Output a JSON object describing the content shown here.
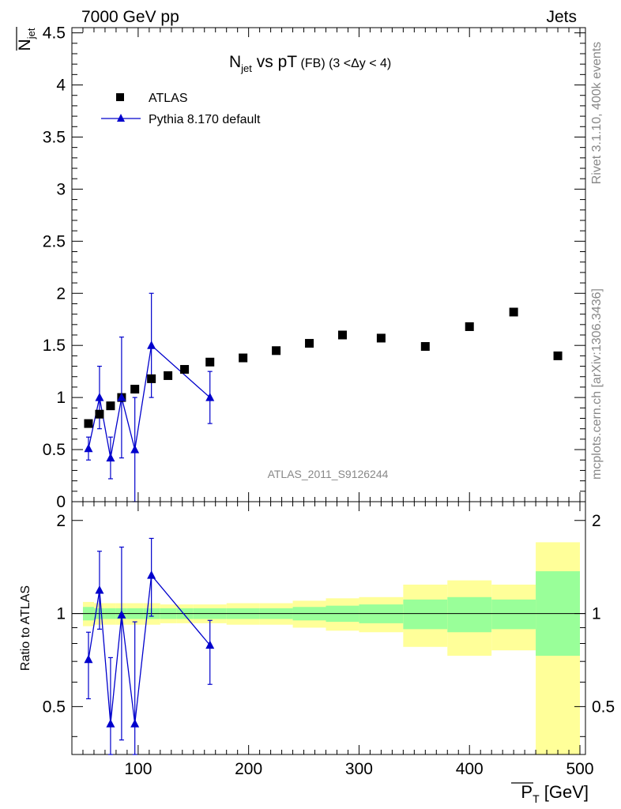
{
  "header": {
    "left": "7000 GeV pp",
    "right": "Jets"
  },
  "side_labels": {
    "rivet": "Rivet 3.1.10,  400k events",
    "mcplots": "mcplots.cern.ch [arXiv:1306.3436]"
  },
  "chart_data": [
    {
      "type": "scatter",
      "title_main": "N",
      "title_sub": "jet",
      "title_rest": " vs pT",
      "title_small": " (FB) (3 <Δy < 4)",
      "ylabel": "N",
      "ylabel_sub": "jet",
      "watermark": "ATLAS_2011_S9126244",
      "xlim": [
        40,
        505
      ],
      "ylim": [
        0,
        4.55
      ],
      "yticks": [
        0,
        0.5,
        1,
        1.5,
        2,
        2.5,
        3,
        3.5,
        4,
        4.5
      ],
      "ytick_labels": [
        "0",
        "0.5",
        "1",
        "1.5",
        "2",
        "2.5",
        "3",
        "3.5",
        "4",
        "4.5"
      ],
      "legend_position": "top-left",
      "series": [
        {
          "name": "ATLAS",
          "marker": "square",
          "color": "#000000",
          "x": [
            55,
            65,
            75,
            85,
            97,
            112,
            127,
            142,
            165,
            195,
            225,
            255,
            285,
            320,
            360,
            400,
            440,
            480
          ],
          "y": [
            0.75,
            0.84,
            0.92,
            1.0,
            1.08,
            1.18,
            1.21,
            1.27,
            1.34,
            1.38,
            1.45,
            1.52,
            1.6,
            1.57,
            1.49,
            1.68,
            1.82,
            1.4
          ]
        },
        {
          "name": "Pythia 8.170 default",
          "marker": "triangle",
          "color": "#0000cc",
          "x": [
            55,
            65,
            75,
            85,
            97,
            112,
            165
          ],
          "y": [
            0.51,
            1.0,
            0.42,
            1.0,
            0.5,
            1.5,
            1.0
          ],
          "err": [
            0.11,
            0.3,
            0.2,
            0.58,
            0.5,
            0.5,
            0.25
          ]
        }
      ]
    },
    {
      "type": "line",
      "ylabel": "Ratio to ATLAS",
      "xlabel": "P",
      "xlabel_sub": "T",
      "xlabel_unit": " [GeV]",
      "xlim": [
        40,
        505
      ],
      "ylim": [
        0.35,
        2.3
      ],
      "yticks": [
        0.5,
        1,
        2
      ],
      "ytick_labels": [
        "0.5",
        "1",
        "2"
      ],
      "xticks": [
        100,
        200,
        300,
        400,
        500
      ],
      "xtick_labels": [
        "100",
        "200",
        "300",
        "400",
        "500"
      ],
      "band_colors": {
        "outer": "#ffff99",
        "inner": "#99ff99"
      },
      "bands": {
        "edges": [
          50,
          60,
          70,
          80,
          90,
          105,
          120,
          135,
          150,
          180,
          210,
          240,
          270,
          300,
          340,
          380,
          420,
          460,
          500
        ],
        "inner_low": [
          0.95,
          0.96,
          0.96,
          0.96,
          0.96,
          0.96,
          0.96,
          0.96,
          0.96,
          0.96,
          0.96,
          0.95,
          0.94,
          0.93,
          0.89,
          0.87,
          0.89,
          0.73
        ],
        "inner_high": [
          1.05,
          1.04,
          1.04,
          1.04,
          1.04,
          1.04,
          1.04,
          1.04,
          1.04,
          1.04,
          1.04,
          1.05,
          1.06,
          1.07,
          1.11,
          1.13,
          1.11,
          1.37
        ],
        "outer_low": [
          0.91,
          0.92,
          0.92,
          0.92,
          0.92,
          0.92,
          0.93,
          0.93,
          0.93,
          0.92,
          0.92,
          0.9,
          0.88,
          0.87,
          0.78,
          0.73,
          0.76,
          0.3
        ],
        "outer_high": [
          1.09,
          1.08,
          1.08,
          1.08,
          1.08,
          1.08,
          1.07,
          1.07,
          1.07,
          1.08,
          1.08,
          1.1,
          1.12,
          1.13,
          1.24,
          1.28,
          1.24,
          1.7
        ]
      },
      "series": [
        {
          "name": "Pythia 8.170 default",
          "color": "#0000cc",
          "x": [
            55,
            65,
            75,
            85,
            97,
            112,
            165
          ],
          "y": [
            0.71,
            1.19,
            0.44,
            0.99,
            0.44,
            1.33,
            0.79
          ],
          "err_low": [
            0.18,
            0.3,
            0.28,
            0.6,
            0.42,
            0.35,
            0.2
          ],
          "err_high": [
            0.16,
            0.4,
            0.28,
            0.65,
            0.5,
            0.42,
            0.16
          ]
        }
      ]
    }
  ]
}
